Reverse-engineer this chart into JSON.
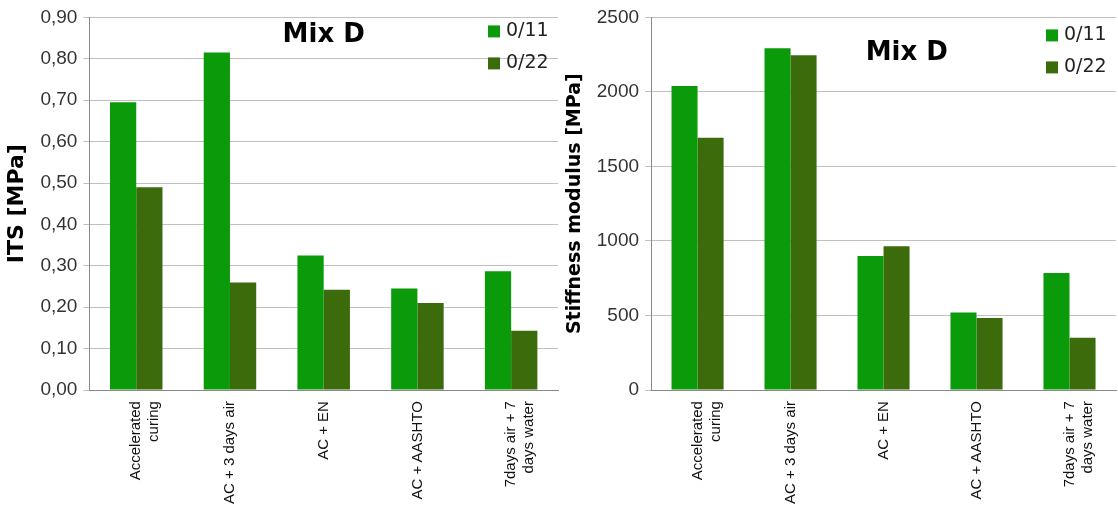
{
  "chart_data": [
    {
      "type": "bar",
      "title": "Mix D",
      "ylabel": "ITS [MPa]",
      "categories": [
        "Accelerated curing",
        "AC + 3 days air",
        "AC + EN",
        "AC + AASHTO",
        "7days air + 7 days water"
      ],
      "series": [
        {
          "name": "0/11",
          "color": "#0a9a0a",
          "values": [
            0.695,
            0.815,
            0.325,
            0.245,
            0.287
          ]
        },
        {
          "name": "0/22",
          "color": "#3b6b0b",
          "values": [
            0.49,
            0.26,
            0.242,
            0.21,
            0.143
          ]
        }
      ],
      "ylim": [
        0,
        0.9
      ],
      "yticks": [
        {
          "value": 0,
          "label": "0,00"
        },
        {
          "value": 0.1,
          "label": "0,10"
        },
        {
          "value": 0.2,
          "label": "0,20"
        },
        {
          "value": 0.3,
          "label": "0,30"
        },
        {
          "value": 0.4,
          "label": "0,40"
        },
        {
          "value": 0.5,
          "label": "0,50"
        },
        {
          "value": 0.6,
          "label": "0,60"
        },
        {
          "value": 0.7,
          "label": "0,70"
        },
        {
          "value": 0.8,
          "label": "0,80"
        },
        {
          "value": 0.9,
          "label": "0,90"
        }
      ],
      "grid": "y",
      "legend": "top right"
    },
    {
      "type": "bar",
      "title": "Mix D",
      "ylabel": "Stiffness modulus [MPa]",
      "categories": [
        "Accelerated curing",
        "AC + 3 days air",
        "AC + EN",
        "AC + AASHTO",
        "7days air + 7 days water"
      ],
      "series": [
        {
          "name": "0/11",
          "color": "#0a9a0a",
          "values": [
            2040,
            2293,
            900,
            520,
            785
          ]
        },
        {
          "name": "0/22",
          "color": "#3b6b0b",
          "values": [
            1692,
            2246,
            965,
            484,
            350
          ]
        }
      ],
      "ylim": [
        0,
        2500
      ],
      "yticks": [
        0,
        500,
        1000,
        1500,
        2000,
        2500
      ],
      "grid": "y",
      "legend": "top right"
    }
  ]
}
